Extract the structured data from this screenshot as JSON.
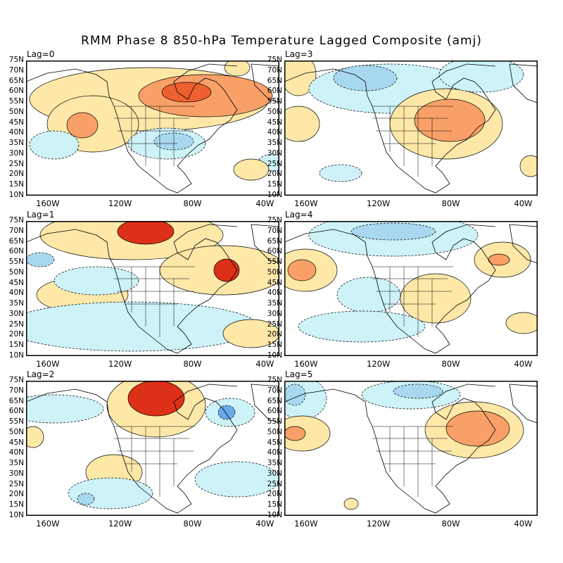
{
  "title": "RMM Phase 8 850-hPa Temperature Lagged Composite (amj)",
  "lat_labels": [
    "75N",
    "70N",
    "65N",
    "60N",
    "55N",
    "50N",
    "45N",
    "40N",
    "35N",
    "30N",
    "25N",
    "20N",
    "15N",
    "10N"
  ],
  "lon_labels": [
    "160W",
    "120W",
    "80W",
    "40W"
  ],
  "lon_values": [
    -160,
    -120,
    -80,
    -40
  ],
  "lon_range": [
    -172,
    -32
  ],
  "lat_range": [
    10,
    75
  ],
  "colors": {
    "weak_warm": "#fde8a8",
    "moderate_warm": "#f8a068",
    "strong_warm": "#ee6030",
    "extreme_warm": "#dd3018",
    "weak_cool": "#cdf2f8",
    "moderate_cool": "#a8d8f0",
    "strong_cool": "#68a8e8"
  },
  "panels": [
    {
      "lag_label": "Lag=0",
      "lag": 0
    },
    {
      "lag_label": "Lag=3",
      "lag": 3
    },
    {
      "lag_label": "Lag=1",
      "lag": 1
    },
    {
      "lag_label": "Lag=4",
      "lag": 4
    },
    {
      "lag_label": "Lag=2",
      "lag": 2
    },
    {
      "lag_label": "Lag=5",
      "lag": 5
    }
  ]
}
